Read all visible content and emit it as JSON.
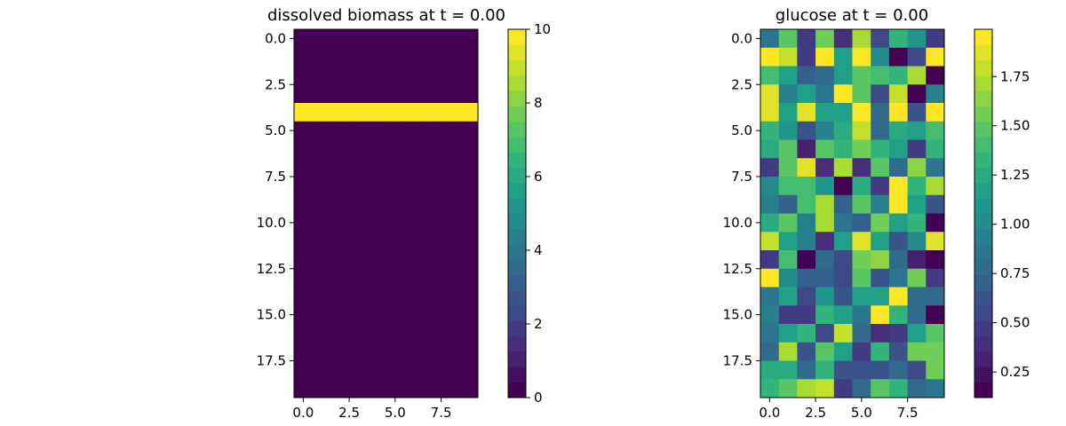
{
  "chart_data": [
    {
      "type": "heatmap",
      "title": "dissolved biomass at t = 0.00",
      "rows": 20,
      "cols": 10,
      "colormap": "viridis",
      "colorbar_levels": 24,
      "vmin": 0,
      "vmax": 10,
      "xticks": [
        0,
        2.5,
        5,
        7.5
      ],
      "xtick_labels": [
        "0.0",
        "2.5",
        "5.0",
        "7.5"
      ],
      "yticks": [
        0,
        2.5,
        5,
        7.5,
        10,
        12.5,
        15,
        17.5
      ],
      "ytick_labels": [
        "0.0",
        "2.5",
        "5.0",
        "7.5",
        "10.0",
        "12.5",
        "15.0",
        "17.5"
      ],
      "colorbar_ticks": [
        0,
        2,
        4,
        6,
        8,
        10
      ],
      "colorbar_tick_labels": [
        "0",
        "2",
        "4",
        "6",
        "8",
        "10"
      ],
      "values": [
        [
          0,
          0,
          0,
          0,
          0,
          0,
          0,
          0,
          0,
          0
        ],
        [
          0,
          0,
          0,
          0,
          0,
          0,
          0,
          0,
          0,
          0
        ],
        [
          0,
          0,
          0,
          0,
          0,
          0,
          0,
          0,
          0,
          0
        ],
        [
          0,
          0,
          0,
          0,
          0,
          0,
          0,
          0,
          0,
          0
        ],
        [
          10,
          10,
          10,
          10,
          10,
          10,
          10,
          10,
          10,
          10
        ],
        [
          0,
          0,
          0,
          0,
          0,
          0,
          0,
          0,
          0,
          0
        ],
        [
          0,
          0,
          0,
          0,
          0,
          0,
          0,
          0,
          0,
          0
        ],
        [
          0,
          0,
          0,
          0,
          0,
          0,
          0,
          0,
          0,
          0
        ],
        [
          0,
          0,
          0,
          0,
          0,
          0,
          0,
          0,
          0,
          0
        ],
        [
          0,
          0,
          0,
          0,
          0,
          0,
          0,
          0,
          0,
          0
        ],
        [
          0,
          0,
          0,
          0,
          0,
          0,
          0,
          0,
          0,
          0
        ],
        [
          0,
          0,
          0,
          0,
          0,
          0,
          0,
          0,
          0,
          0
        ],
        [
          0,
          0,
          0,
          0,
          0,
          0,
          0,
          0,
          0,
          0
        ],
        [
          0,
          0,
          0,
          0,
          0,
          0,
          0,
          0,
          0,
          0
        ],
        [
          0,
          0,
          0,
          0,
          0,
          0,
          0,
          0,
          0,
          0
        ],
        [
          0,
          0,
          0,
          0,
          0,
          0,
          0,
          0,
          0,
          0
        ],
        [
          0,
          0,
          0,
          0,
          0,
          0,
          0,
          0,
          0,
          0
        ],
        [
          0,
          0,
          0,
          0,
          0,
          0,
          0,
          0,
          0,
          0
        ],
        [
          0,
          0,
          0,
          0,
          0,
          0,
          0,
          0,
          0,
          0
        ],
        [
          0,
          0,
          0,
          0,
          0,
          0,
          0,
          0,
          0,
          0
        ]
      ]
    },
    {
      "type": "heatmap",
      "title": "glucose at t = 0.00",
      "rows": 20,
      "cols": 10,
      "colormap": "viridis",
      "colorbar_levels": 24,
      "vmin": 0.12,
      "vmax": 1.99,
      "xticks": [
        0,
        2.5,
        5,
        7.5
      ],
      "xtick_labels": [
        "0.0",
        "2.5",
        "5.0",
        "7.5"
      ],
      "yticks": [
        0,
        2.5,
        5,
        7.5,
        10,
        12.5,
        15,
        17.5
      ],
      "ytick_labels": [
        "0.0",
        "2.5",
        "5.0",
        "7.5",
        "10.0",
        "12.5",
        "15.0",
        "17.5"
      ],
      "colorbar_ticks": [
        0.25,
        0.5,
        0.75,
        1.0,
        1.25,
        1.5,
        1.75
      ],
      "colorbar_tick_labels": [
        "0.25",
        "0.50",
        "0.75",
        "1.00",
        "1.25",
        "1.50",
        "1.75"
      ],
      "values": [
        [
          0.85,
          1.45,
          0.45,
          1.6,
          0.4,
          1.75,
          0.55,
          1.35,
          1.1,
          0.45
        ],
        [
          1.95,
          1.8,
          0.45,
          1.95,
          1.2,
          1.95,
          1.05,
          0.15,
          0.55,
          1.95
        ],
        [
          1.4,
          1.2,
          0.7,
          0.8,
          1.15,
          1.5,
          1.4,
          1.35,
          1.7,
          0.15
        ],
        [
          1.9,
          0.95,
          1.2,
          0.85,
          1.95,
          1.5,
          0.55,
          1.8,
          0.15,
          0.9
        ],
        [
          1.85,
          1.2,
          1.85,
          1.2,
          1.2,
          1.95,
          0.75,
          1.95,
          0.65,
          1.95
        ],
        [
          1.35,
          1.1,
          0.65,
          0.9,
          1.25,
          1.8,
          0.8,
          1.25,
          1.2,
          1.4
        ],
        [
          1.25,
          1.45,
          0.35,
          1.45,
          1.35,
          1.55,
          1.3,
          1.2,
          0.45,
          1.3
        ],
        [
          0.45,
          1.45,
          1.85,
          0.4,
          1.75,
          0.4,
          1.5,
          0.8,
          1.65,
          0.85
        ],
        [
          1.05,
          1.4,
          1.4,
          1.1,
          0.15,
          1.25,
          0.5,
          1.95,
          1.35,
          1.75
        ],
        [
          0.9,
          0.7,
          1.4,
          1.75,
          0.7,
          1.45,
          0.95,
          1.95,
          1.15,
          0.65
        ],
        [
          1.25,
          1.45,
          0.95,
          1.75,
          0.85,
          0.7,
          1.55,
          1.2,
          1.3,
          0.15
        ],
        [
          1.8,
          1.2,
          0.95,
          0.4,
          1.15,
          1.85,
          1.2,
          0.6,
          1.0,
          1.85
        ],
        [
          0.5,
          1.4,
          0.15,
          0.75,
          0.55,
          1.55,
          1.65,
          0.8,
          0.35,
          0.15
        ],
        [
          1.95,
          1.0,
          0.7,
          0.7,
          0.55,
          1.45,
          0.6,
          0.85,
          1.6,
          0.45
        ],
        [
          0.85,
          1.2,
          0.55,
          1.1,
          0.65,
          1.2,
          1.2,
          1.95,
          0.75,
          0.75
        ],
        [
          0.9,
          0.45,
          0.5,
          1.3,
          1.15,
          0.85,
          1.95,
          1.3,
          0.75,
          0.15
        ],
        [
          0.85,
          1.2,
          1.3,
          0.55,
          1.8,
          0.75,
          0.4,
          0.45,
          1.2,
          1.5
        ],
        [
          0.8,
          1.75,
          0.65,
          1.5,
          1.15,
          0.5,
          1.35,
          0.65,
          1.55,
          1.55
        ],
        [
          1.25,
          1.25,
          0.75,
          1.3,
          0.65,
          0.65,
          0.65,
          0.75,
          0.55,
          1.6
        ],
        [
          1.3,
          1.5,
          1.75,
          1.8,
          0.5,
          0.75,
          1.45,
          1.3,
          0.75,
          0.85
        ]
      ]
    }
  ]
}
